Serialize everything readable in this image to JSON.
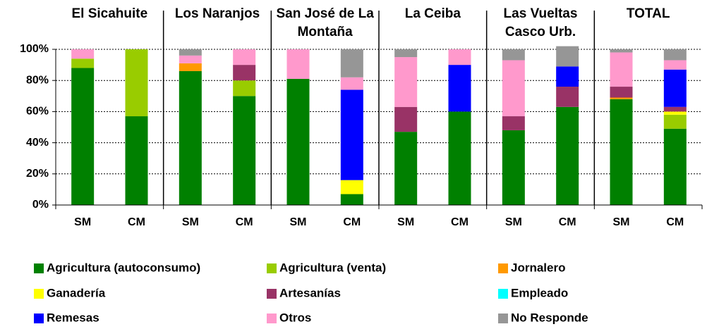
{
  "chart_data": {
    "type": "stacked_bar",
    "groups": [
      "El Sicahuite",
      "Los Naranjos",
      "San José de La Montaña",
      "La Ceiba",
      "Las Vueltas Casco Urb.",
      "TOTAL"
    ],
    "categories": [
      "SM",
      "CM",
      "SM",
      "CM",
      "SM",
      "CM",
      "SM",
      "CM",
      "SM",
      "CM",
      "SM",
      "CM"
    ],
    "series": [
      {
        "name": "Agricultura (autoconsumo)",
        "color": "#008000",
        "values": [
          88,
          57,
          86,
          70,
          81,
          7,
          47,
          60,
          48,
          63,
          68,
          49
        ]
      },
      {
        "name": "Agricultura (venta)",
        "color": "#99cc00",
        "values": [
          6,
          43,
          0,
          10,
          0,
          0,
          0,
          0,
          0,
          0,
          0,
          9
        ]
      },
      {
        "name": "Jornalero",
        "color": "#ff9900",
        "values": [
          0,
          0,
          5,
          0,
          0,
          0,
          0,
          0,
          0,
          0,
          1,
          0
        ]
      },
      {
        "name": "Ganadería",
        "color": "#ffff00",
        "values": [
          0,
          0,
          0,
          0,
          0,
          9,
          0,
          0,
          0,
          0,
          0,
          2
        ]
      },
      {
        "name": "Artesanías",
        "color": "#993366",
        "values": [
          0,
          0,
          0,
          10,
          0,
          0,
          16,
          0,
          9,
          13,
          7,
          3
        ]
      },
      {
        "name": "Empleado",
        "color": "#00ffff",
        "values": [
          0,
          0,
          0,
          0,
          0,
          0,
          0,
          0,
          0,
          0,
          0,
          0
        ]
      },
      {
        "name": "Remesas",
        "color": "#0000ff",
        "values": [
          0,
          0,
          0,
          0,
          0,
          58,
          0,
          30,
          0,
          13,
          0,
          24
        ]
      },
      {
        "name": "Otros",
        "color": "#ff99cc",
        "values": [
          6,
          0,
          5,
          10,
          19,
          8,
          32,
          10,
          36,
          0,
          22,
          6
        ]
      },
      {
        "name": "No Responde",
        "color": "#969696",
        "values": [
          0,
          0,
          4,
          0,
          0,
          18,
          5,
          0,
          7,
          13,
          2,
          7
        ]
      }
    ],
    "ylim": [
      0,
      100
    ],
    "yticks": [
      {
        "value": 0,
        "label": "0%"
      },
      {
        "value": 20,
        "label": "20%"
      },
      {
        "value": 40,
        "label": "40%"
      },
      {
        "value": 60,
        "label": "60%"
      },
      {
        "value": 80,
        "label": "80%"
      },
      {
        "value": 100,
        "label": "100%"
      }
    ]
  }
}
